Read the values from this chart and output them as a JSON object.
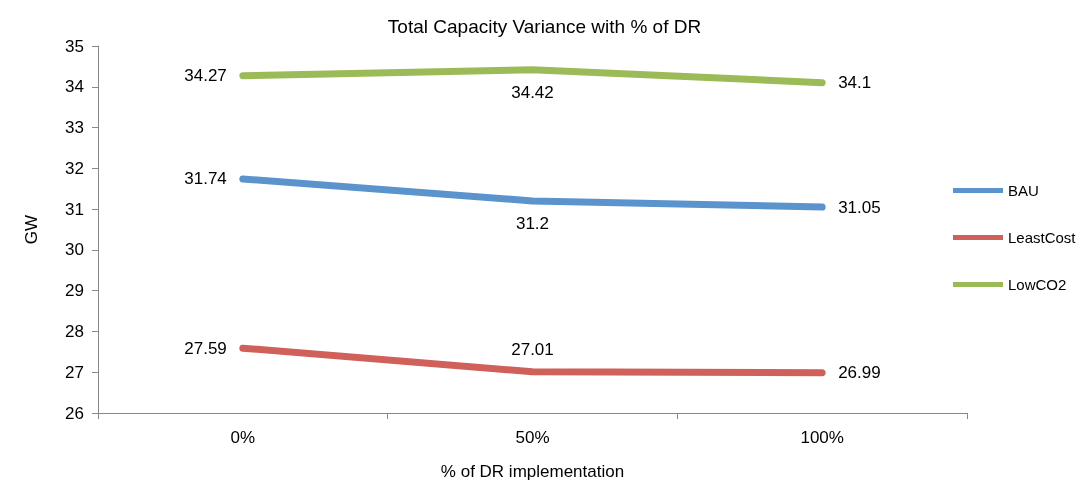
{
  "chart_data": {
    "type": "line",
    "title": "Total Capacity Variance with % of DR",
    "xlabel": "% of DR implementation",
    "ylabel": "GW",
    "categories": [
      "0%",
      "50%",
      "100%"
    ],
    "series": [
      {
        "name": "BAU",
        "color": "#5b93cc",
        "values": [
          31.74,
          31.2,
          31.05
        ]
      },
      {
        "name": "LeastCost",
        "color": "#d0615a",
        "values": [
          27.59,
          27.01,
          26.99
        ]
      },
      {
        "name": "LowCO2",
        "color": "#9bbb59",
        "values": [
          34.27,
          34.42,
          34.1
        ]
      }
    ],
    "ylim": [
      26,
      35
    ],
    "yticks": [
      26,
      27,
      28,
      29,
      30,
      31,
      32,
      33,
      34,
      35
    ],
    "grid": false,
    "legend": "right",
    "marker": "none",
    "line_style": "solid",
    "data_labels": true
  }
}
